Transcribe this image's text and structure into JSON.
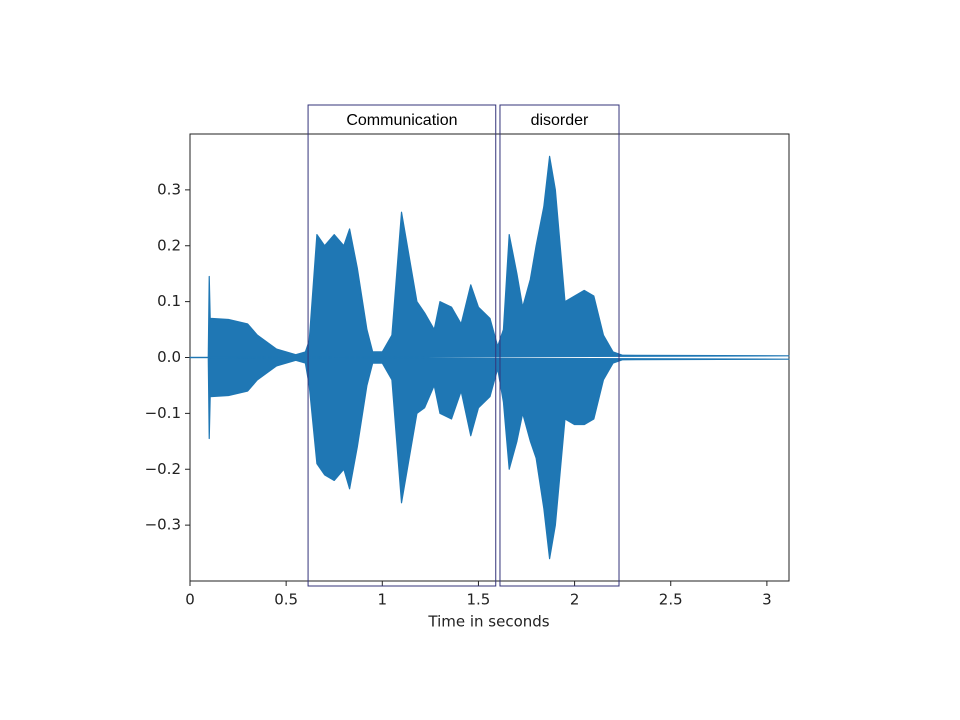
{
  "chart_data": {
    "type": "waveform",
    "x_label": "Time in seconds",
    "color": "#1f77b4",
    "xlim": [
      0,
      3.115
    ],
    "ylim": [
      -0.4,
      0.4
    ],
    "xticks": [
      0,
      0.5,
      1,
      1.5,
      2,
      2.5,
      3
    ],
    "yticks": [
      {
        "value": -0.3,
        "label": "−0.3"
      },
      {
        "value": -0.2,
        "label": "−0.2"
      },
      {
        "value": -0.1,
        "label": "−0.1"
      },
      {
        "value": 0,
        "label": "0.0"
      },
      0.1,
      0.2,
      0.3
    ],
    "x": [
      0,
      0.095,
      0.1,
      0.105,
      0.2,
      0.3,
      0.35,
      0.45,
      0.55,
      0.6,
      0.62,
      0.66,
      0.7,
      0.75,
      0.8,
      0.83,
      0.87,
      0.92,
      0.95,
      1.0,
      1.05,
      1.1,
      1.13,
      1.18,
      1.22,
      1.27,
      1.3,
      1.36,
      1.41,
      1.46,
      1.5,
      1.56,
      1.6,
      1.63,
      1.66,
      1.7,
      1.73,
      1.77,
      1.8,
      1.84,
      1.87,
      1.9,
      1.95,
      2.0,
      2.05,
      2.1,
      2.15,
      2.2,
      2.25,
      3.115
    ],
    "series": [
      {
        "name": "upper envelope",
        "values": [
          0,
          0,
          0.145,
          0.07,
          0.068,
          0.06,
          0.04,
          0.015,
          0.005,
          0.01,
          0.03,
          0.22,
          0.2,
          0.22,
          0.2,
          0.23,
          0.16,
          0.05,
          0.01,
          0.01,
          0.04,
          0.26,
          0.2,
          0.1,
          0.08,
          0.05,
          0.1,
          0.09,
          0.06,
          0.13,
          0.09,
          0.07,
          0.02,
          0.05,
          0.22,
          0.15,
          0.09,
          0.14,
          0.2,
          0.27,
          0.36,
          0.3,
          0.1,
          0.11,
          0.12,
          0.11,
          0.04,
          0.01,
          0.004,
          0.003
        ]
      },
      {
        "name": "lower envelope",
        "values": [
          0,
          0,
          -0.145,
          -0.07,
          -0.068,
          -0.06,
          -0.04,
          -0.015,
          -0.005,
          -0.01,
          -0.05,
          -0.19,
          -0.21,
          -0.22,
          -0.2,
          -0.235,
          -0.16,
          -0.05,
          -0.01,
          -0.01,
          -0.04,
          -0.26,
          -0.2,
          -0.1,
          -0.09,
          -0.05,
          -0.1,
          -0.11,
          -0.06,
          -0.14,
          -0.09,
          -0.07,
          -0.02,
          -0.08,
          -0.2,
          -0.15,
          -0.1,
          -0.15,
          -0.18,
          -0.27,
          -0.36,
          -0.3,
          -0.11,
          -0.12,
          -0.12,
          -0.11,
          -0.04,
          -0.01,
          -0.004,
          -0.003
        ]
      }
    ],
    "annotations": [
      {
        "text": "Communication",
        "x_start": 0.614,
        "x_end": 1.59
      },
      {
        "text": "disorder",
        "x_start": 1.612,
        "x_end": 2.231
      }
    ]
  }
}
